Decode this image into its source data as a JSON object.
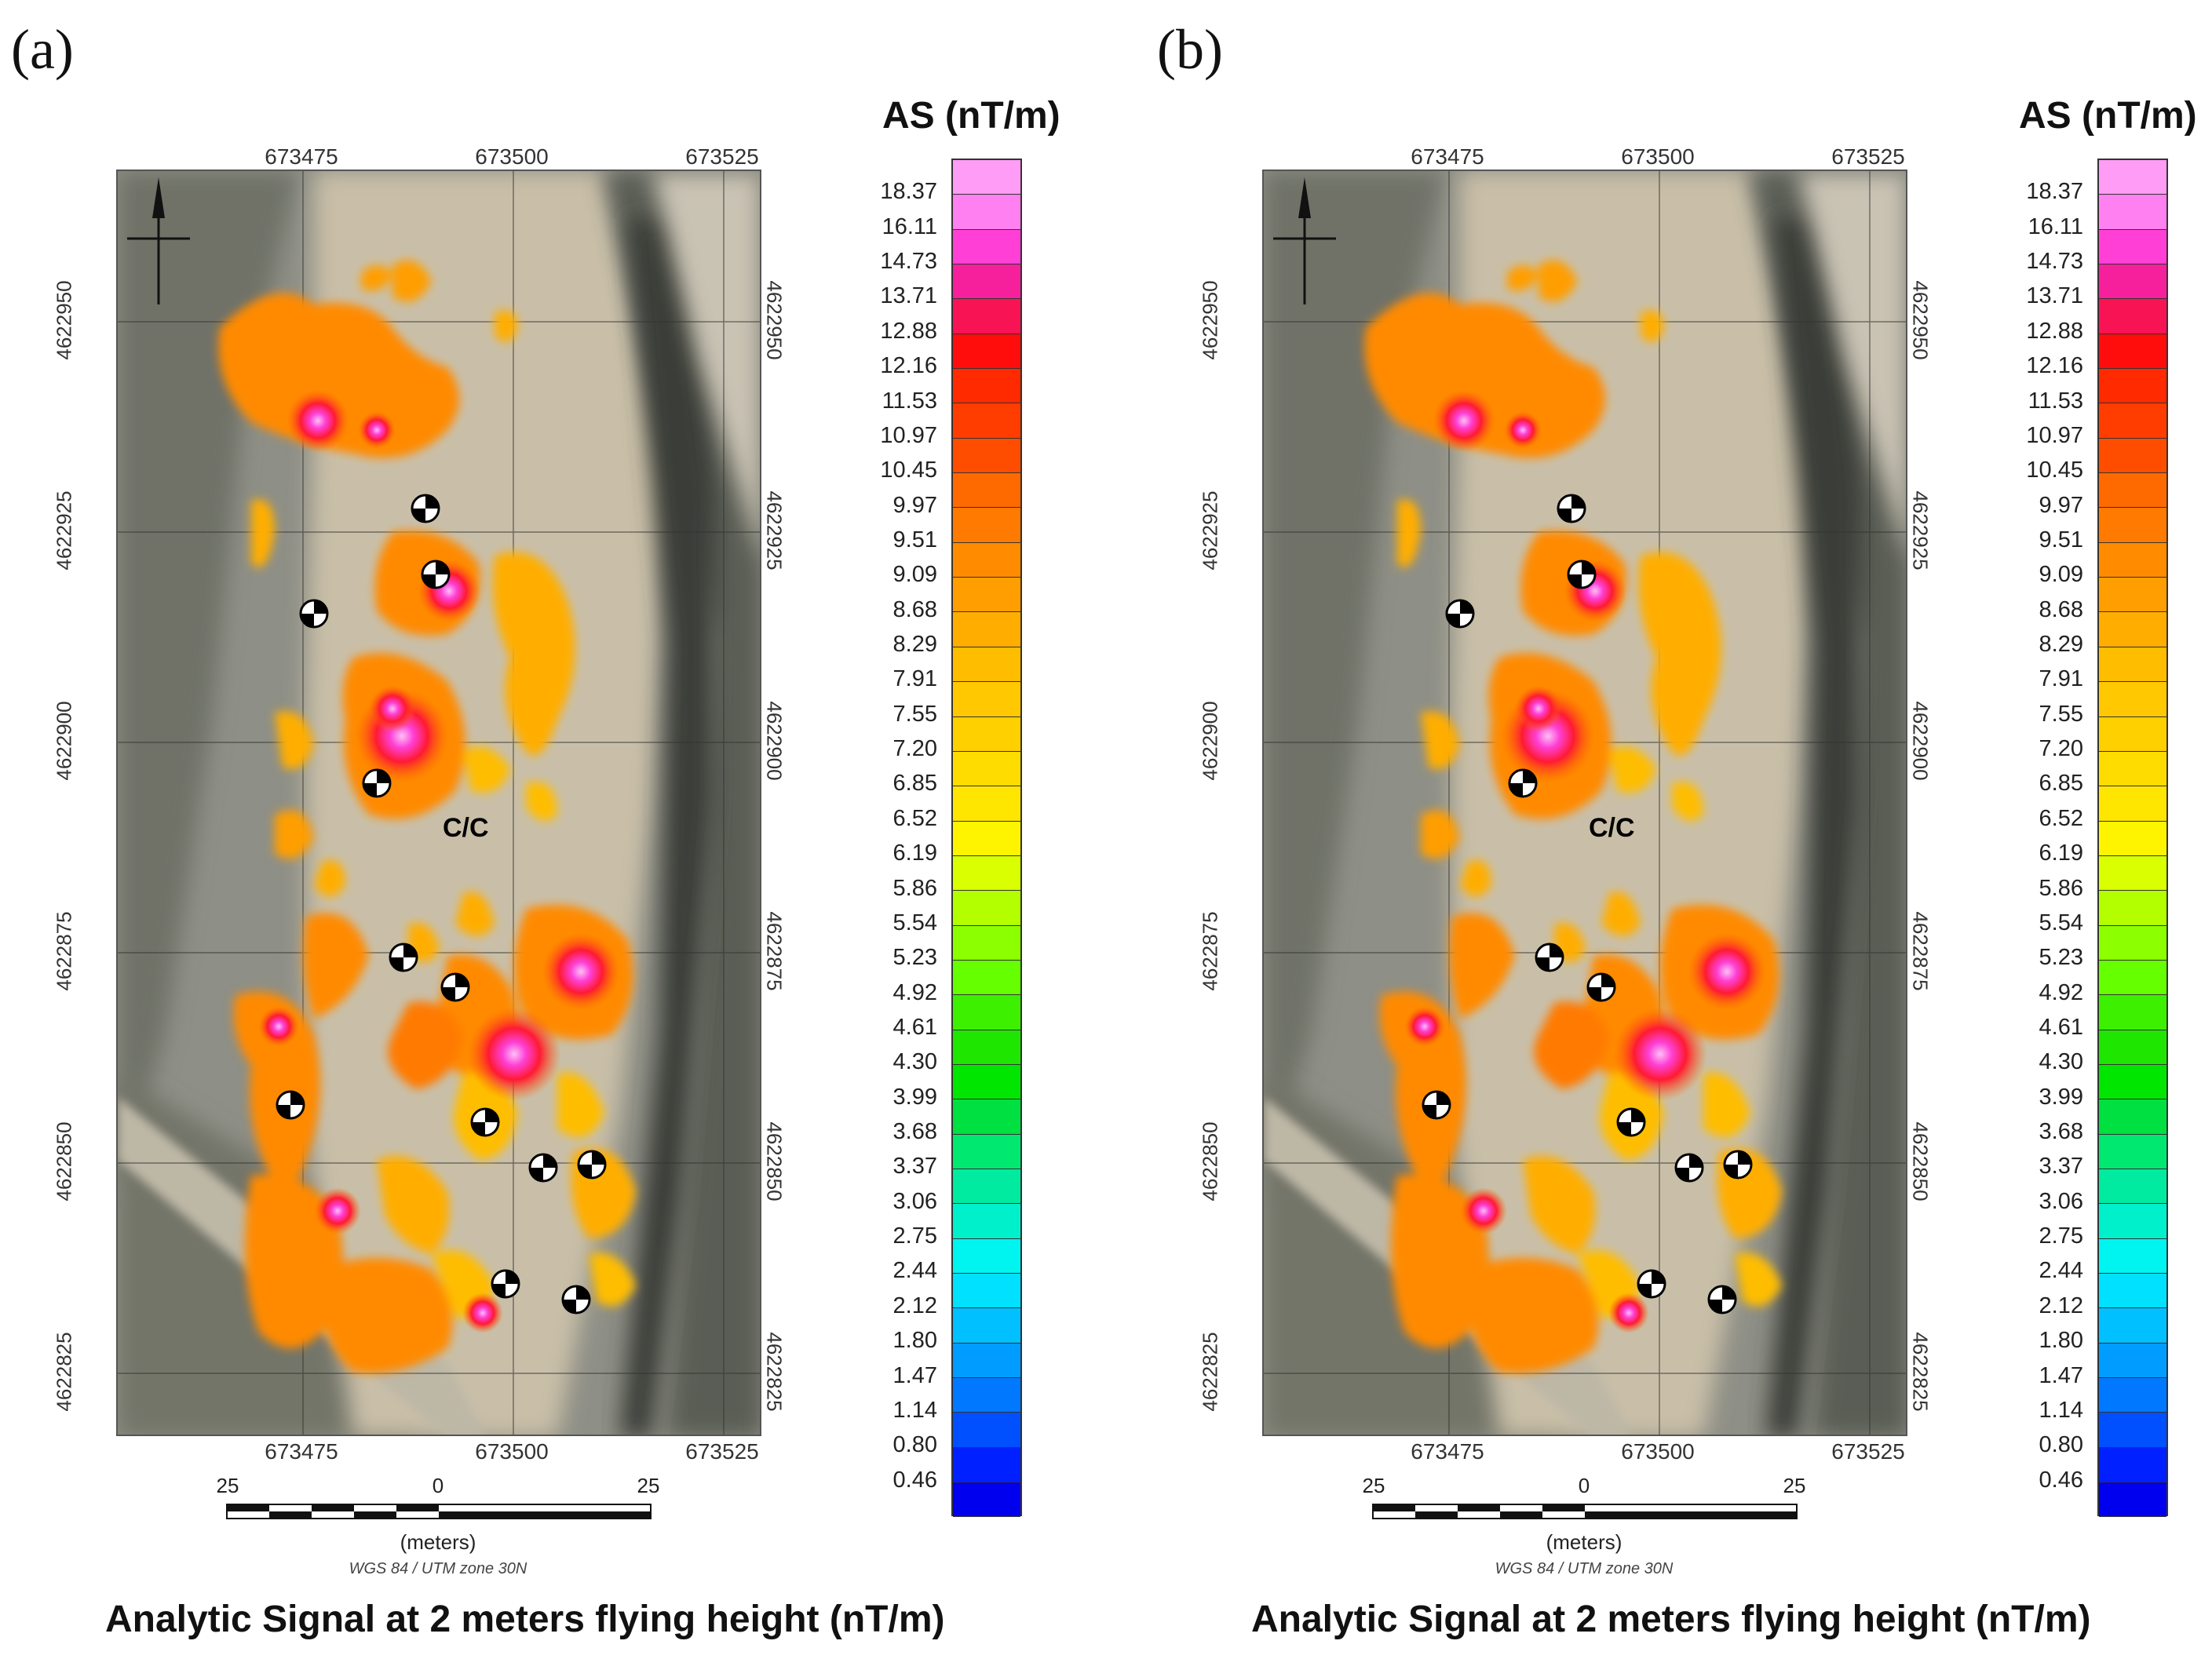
{
  "panels": [
    {
      "letter": "(a)",
      "caption": "Analytic Signal at 2 meters flying height (nT/m)"
    },
    {
      "letter": "(b)",
      "caption": "Analytic Signal at 2 meters flying height (nT/m)"
    }
  ],
  "map_axes": {
    "easting_ticks": [
      "673475",
      "673500",
      "673525"
    ],
    "northing_ticks": [
      "4622950",
      "4622925",
      "4622900",
      "4622875",
      "4622850",
      "4622825"
    ]
  },
  "annotation": {
    "cc_label": "C/C"
  },
  "scale_bar": {
    "left": "25",
    "center": "0",
    "right": "25",
    "unit": "(meters)",
    "crs": "WGS 84 / UTM zone 30N"
  },
  "colorbar": {
    "title": "AS (nT/m)",
    "labels": [
      "18.37",
      "16.11",
      "14.73",
      "13.71",
      "12.88",
      "12.16",
      "11.53",
      "10.97",
      "10.45",
      "9.97",
      "9.51",
      "9.09",
      "8.68",
      "8.29",
      "7.91",
      "7.55",
      "7.20",
      "6.85",
      "6.52",
      "6.19",
      "5.86",
      "5.54",
      "5.23",
      "4.92",
      "4.61",
      "4.30",
      "3.99",
      "3.68",
      "3.37",
      "3.06",
      "2.75",
      "2.44",
      "2.12",
      "1.80",
      "1.47",
      "1.14",
      "0.80",
      "0.46"
    ],
    "colors": [
      "#ff9cf5",
      "#ff80f0",
      "#ff3fd6",
      "#f7209c",
      "#f81454",
      "#ff0d0d",
      "#ff2a00",
      "#ff3d00",
      "#ff4d00",
      "#ff6a00",
      "#ff7a00",
      "#ff8c00",
      "#ff9e00",
      "#ffae00",
      "#ffbd00",
      "#ffc800",
      "#ffd000",
      "#ffdc00",
      "#ffe600",
      "#fff400",
      "#d9ff00",
      "#b3ff00",
      "#8cff00",
      "#66ff00",
      "#3cf000",
      "#1ee600",
      "#00e600",
      "#00e040",
      "#00e870",
      "#00eba0",
      "#00f0cc",
      "#00f5f0",
      "#00e0ff",
      "#00c0ff",
      "#009cff",
      "#0078ff",
      "#0050ff",
      "#0020ff",
      "#0000ee"
    ]
  }
}
